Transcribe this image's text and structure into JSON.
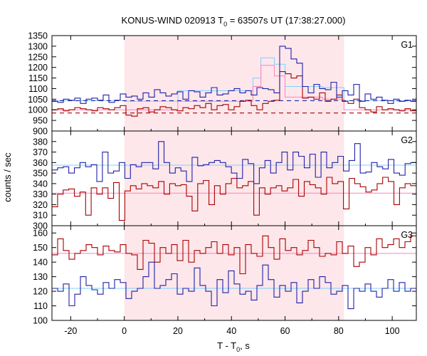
{
  "chart_data": {
    "type": "line",
    "title_main": "KONUS-WIND 020913 T",
    "title_sub": "0",
    "title_rest": " = 63507s UT (17:38:27.000)",
    "ylabel": "counts / sec",
    "xlabel_main": "T - T",
    "xlabel_sub": "0",
    "xlabel_rest": ", s",
    "xlim": [
      -27,
      109
    ],
    "x_ticks": [
      -20,
      0,
      20,
      40,
      60,
      80,
      100
    ],
    "shade_range": [
      0,
      82
    ],
    "colors": {
      "red": "#aa0000",
      "blue": "#2020aa",
      "pink": "#ff80c0",
      "cyan": "#80d0ff",
      "shade": "#fde7ea"
    },
    "panels": [
      {
        "label": "G1",
        "ylim": [
          900,
          1350
        ],
        "y_ticks": [
          900,
          950,
          1000,
          1050,
          1100,
          1150,
          1200,
          1250,
          1300,
          1350
        ],
        "blue_bg": 1043,
        "red_bg": 985,
        "blue_series": [
          1040,
          1035,
          1050,
          1045,
          1055,
          1030,
          1050,
          1055,
          1045,
          1070,
          1035,
          1045,
          1075,
          1060,
          1065,
          1050,
          1080,
          1060,
          1095,
          1080,
          1065,
          1075,
          1085,
          1050,
          1090,
          1085,
          1060,
          1080,
          1105,
          1070,
          1075,
          1090,
          1100,
          1080,
          1090,
          1070,
          1105,
          1100,
          1095,
          1080,
          1300,
          1290,
          1240,
          1220,
          1110,
          1080,
          1120,
          1100,
          1095,
          1130,
          1060,
          1090,
          1070,
          1120,
          1040,
          1075,
          1050,
          1060,
          1045,
          1030,
          1050,
          1040,
          1045,
          1040
        ],
        "red_series": [
          1000,
          1005,
          995,
          1000,
          1010,
          1005,
          1000,
          995,
          1010,
          1005,
          1000,
          1010,
          1020,
          975,
          970,
          1005,
          1010,
          990,
          1000,
          1015,
          1010,
          1000,
          995,
          1010,
          1005,
          1020,
          1010,
          1030,
          1000,
          1020,
          1025,
          1000,
          1015,
          1040,
          1045,
          1020,
          1000,
          1030,
          1040,
          1045,
          1180,
          1170,
          1150,
          1160,
          1055,
          1060,
          1050,
          1080,
          1040,
          1050,
          1070,
          1040,
          1030,
          1050,
          1010,
          1000,
          990,
          1015,
          1000,
          1005,
          1000,
          995,
          1005,
          995
        ],
        "cyan_steps": [
          [
            -27,
            0,
            1043
          ],
          [
            0,
            20,
            1040
          ],
          [
            20,
            48,
            1090
          ],
          [
            48,
            51,
            1150
          ],
          [
            51,
            56,
            1245
          ],
          [
            56,
            60,
            1215
          ],
          [
            60,
            74,
            1110
          ],
          [
            74,
            82,
            1105
          ],
          [
            82,
            109,
            1043
          ]
        ],
        "pink_steps": [
          [
            -27,
            0,
            1000
          ],
          [
            0,
            20,
            1000
          ],
          [
            20,
            48,
            1040
          ],
          [
            48,
            51,
            1110
          ],
          [
            51,
            56,
            1210
          ],
          [
            56,
            60,
            1160
          ],
          [
            60,
            74,
            1060
          ],
          [
            74,
            82,
            1050
          ],
          [
            82,
            109,
            1000
          ]
        ]
      },
      {
        "label": "G2",
        "ylim": [
          300,
          390
        ],
        "y_ticks": [
          300,
          310,
          320,
          330,
          340,
          350,
          360,
          370,
          380,
          390
        ],
        "cyan_level": 357.5,
        "pink_level": 331,
        "blue_series": [
          353,
          355,
          356,
          350,
          355,
          360,
          356,
          358,
          342,
          370,
          350,
          352,
          360,
          345,
          358,
          356,
          360,
          360,
          354,
          380,
          360,
          350,
          355,
          352,
          342,
          365,
          357,
          358,
          360,
          362,
          360,
          356,
          350,
          345,
          363,
          359,
          340,
          355,
          362,
          350,
          360,
          370,
          353,
          370,
          366,
          355,
          368,
          346,
          370,
          355,
          360,
          366,
          352,
          362,
          378,
          350,
          351,
          360,
          356,
          354,
          363,
          350,
          348,
          359,
          360
        ],
        "red_series": [
          318,
          330,
          334,
          335,
          328,
          332,
          310,
          336,
          330,
          336,
          326,
          341,
          305,
          333,
          338,
          335,
          340,
          338,
          336,
          342,
          330,
          340,
          338,
          339,
          328,
          314,
          340,
          343,
          320,
          338,
          330,
          340,
          345,
          336,
          338,
          342,
          310,
          336,
          330,
          336,
          338,
          333,
          336,
          344,
          328,
          342,
          339,
          336,
          330,
          346,
          340,
          342,
          316,
          345,
          340,
          337,
          332,
          334,
          340,
          346,
          342,
          320,
          336,
          340,
          338
        ]
      },
      {
        "label": "G3",
        "ylim": [
          100,
          165
        ],
        "y_ticks": [
          100,
          110,
          120,
          130,
          140,
          150,
          160
        ],
        "cyan_level": 122,
        "pink_level": 146,
        "blue_series": [
          122,
          120,
          125,
          110,
          118,
          130,
          124,
          121,
          118,
          126,
          122,
          128,
          126,
          115,
          120,
          122,
          130,
          140,
          122,
          124,
          128,
          132,
          118,
          122,
          120,
          136,
          124,
          120,
          110,
          128,
          119,
          134,
          125,
          118,
          120,
          114,
          124,
          138,
          128,
          116,
          124,
          120,
          126,
          112,
          120,
          128,
          122,
          130,
          126,
          118,
          120,
          124,
          108,
          122,
          120,
          125,
          120,
          116,
          122,
          128,
          120,
          126,
          120,
          122
        ],
        "red_series": [
          145,
          156,
          148,
          142,
          146,
          148,
          152,
          150,
          145,
          151,
          148,
          147,
          152,
          146,
          145,
          135,
          155,
          153,
          140,
          150,
          146,
          152,
          141,
          155,
          140,
          148,
          146,
          150,
          154,
          146,
          152,
          145,
          150,
          132,
          152,
          146,
          144,
          158,
          150,
          142,
          156,
          148,
          150,
          145,
          148,
          155,
          150,
          144,
          146,
          145,
          154,
          146,
          151,
          137,
          140,
          150,
          145,
          156,
          150,
          152,
          156,
          150,
          154,
          158
        ]
      }
    ]
  }
}
